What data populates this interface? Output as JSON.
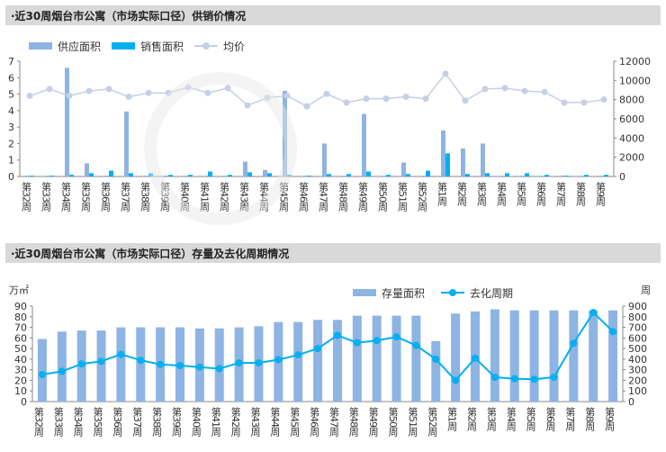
{
  "chart_data": [
    {
      "type": "bar",
      "title": "·近30周烟台市公寓（市场实际口径）供销价情况",
      "categories": [
        "第32周",
        "第33周",
        "第34周",
        "第35周",
        "第36周",
        "第37周",
        "第38周",
        "第39周",
        "第40周",
        "第41周",
        "第42周",
        "第43周",
        "第44周",
        "第45周",
        "第46周",
        "第47周",
        "第48周",
        "第49周",
        "第50周",
        "第51周",
        "第52周",
        "第1周",
        "第2周",
        "第3周",
        "第4周",
        "第5周",
        "第6周",
        "第7周",
        "第8周",
        "第9周"
      ],
      "series": [
        {
          "name": "供应面积",
          "kind": "bar",
          "axis": "left",
          "color": "#8eb4e3",
          "values": [
            0.05,
            0.05,
            6.6,
            0.8,
            0.05,
            3.95,
            0.05,
            0.05,
            0.05,
            0.05,
            0.05,
            0.9,
            0.4,
            5.2,
            0.05,
            2.0,
            0.05,
            3.8,
            0.05,
            0.85,
            0.05,
            2.8,
            1.7,
            2.0,
            0.05,
            0.05,
            0.05,
            0.05,
            0.05,
            0.05
          ]
        },
        {
          "name": "销售面积",
          "kind": "bar",
          "axis": "left",
          "color": "#00b0f0",
          "values": [
            0.05,
            0.05,
            0.1,
            0.2,
            0.35,
            0.2,
            0.2,
            0.1,
            0.1,
            0.3,
            0.1,
            0.25,
            0.2,
            0.1,
            0.05,
            0.15,
            0.15,
            0.3,
            0.1,
            0.15,
            0.35,
            1.4,
            0.15,
            0.2,
            0.2,
            0.2,
            0.1,
            0.05,
            0.1,
            0.1
          ]
        },
        {
          "name": "均价",
          "kind": "line",
          "axis": "right",
          "color": "#c5cfe6",
          "values": [
            8400,
            9100,
            8400,
            8900,
            9100,
            8300,
            8700,
            8700,
            9300,
            8700,
            9200,
            7400,
            8200,
            8400,
            7300,
            8600,
            7700,
            8100,
            8100,
            8300,
            8100,
            10700,
            7900,
            9100,
            9200,
            8900,
            8800,
            7700,
            7700,
            8000
          ]
        }
      ],
      "ylim": [
        0,
        7
      ],
      "yticks": [
        0,
        1,
        2,
        3,
        4,
        5,
        6,
        7
      ],
      "y2lim": [
        0,
        12000
      ],
      "y2ticks": [
        0,
        2000,
        4000,
        6000,
        8000,
        10000,
        12000
      ],
      "legend": "top-center"
    },
    {
      "type": "bar",
      "title": "·近30周烟台市公寓（市场实际口径）存量及去化周期情况",
      "ylabel": "万㎡",
      "y2label": "周",
      "categories": [
        "第32周",
        "第33周",
        "第34周",
        "第35周",
        "第36周",
        "第37周",
        "第38周",
        "第39周",
        "第40周",
        "第41周",
        "第42周",
        "第43周",
        "第44周",
        "第45周",
        "第46周",
        "第47周",
        "第48周",
        "第49周",
        "第50周",
        "第51周",
        "第52周",
        "第1周",
        "第2周",
        "第3周",
        "第4周",
        "第5周",
        "第6周",
        "第7周",
        "第8周",
        "第9周"
      ],
      "series": [
        {
          "name": "存量面积",
          "kind": "bar",
          "axis": "left",
          "color": "#8eb4e3",
          "values": [
            59,
            66,
            67,
            67,
            70,
            70,
            70,
            70,
            69,
            69,
            70,
            71,
            75,
            75,
            77,
            77,
            81,
            81,
            81,
            81,
            57,
            83,
            85,
            87,
            86,
            86,
            86,
            86,
            86,
            86
          ]
        },
        {
          "name": "去化周期",
          "kind": "line",
          "axis": "right",
          "color": "#00b0f0",
          "values": [
            255,
            285,
            355,
            380,
            445,
            390,
            350,
            340,
            325,
            310,
            365,
            365,
            395,
            440,
            500,
            625,
            555,
            575,
            610,
            530,
            400,
            200,
            410,
            230,
            215,
            210,
            230,
            550,
            840,
            660
          ]
        }
      ],
      "ylim": [
        0,
        90
      ],
      "yticks": [
        0,
        10,
        20,
        30,
        40,
        50,
        60,
        70,
        80,
        90
      ],
      "y2lim": [
        0,
        900
      ],
      "y2ticks": [
        0,
        100,
        200,
        300,
        400,
        500,
        600,
        700,
        800,
        900
      ],
      "legend": "top-center"
    }
  ]
}
